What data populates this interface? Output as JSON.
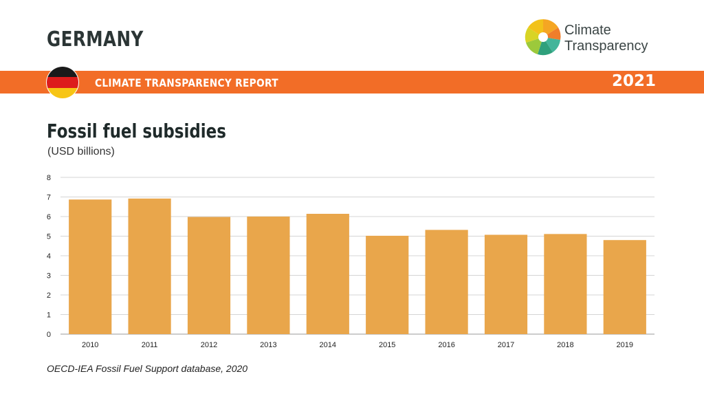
{
  "header": {
    "country": "GERMANY",
    "logo_line1": "Climate",
    "logo_line2": "Transparency",
    "logo_icon": "climate-transparency-logo-icon",
    "flag_icon": "germany-flag-icon"
  },
  "banner": {
    "report_title": "CLIMATE TRANSPARENCY REPORT",
    "year": "2021",
    "color": "#f26d27"
  },
  "source": "OECD-IEA Fossil Fuel Support database, 2020",
  "chart_data": {
    "type": "bar",
    "title": "Fossil fuel subsidies",
    "subtitle": "(USD billions)",
    "categories": [
      "2010",
      "2011",
      "2012",
      "2013",
      "2014",
      "2015",
      "2016",
      "2017",
      "2018",
      "2019"
    ],
    "values": [
      6.87,
      6.92,
      5.98,
      6.0,
      6.14,
      5.02,
      5.32,
      5.07,
      5.11,
      4.8
    ],
    "ylim": [
      0,
      8
    ],
    "yticks": [
      "0",
      "1",
      "2",
      "3",
      "4",
      "5",
      "6",
      "7",
      "8"
    ],
    "grid": true,
    "bar_color": "#e9a64b"
  }
}
